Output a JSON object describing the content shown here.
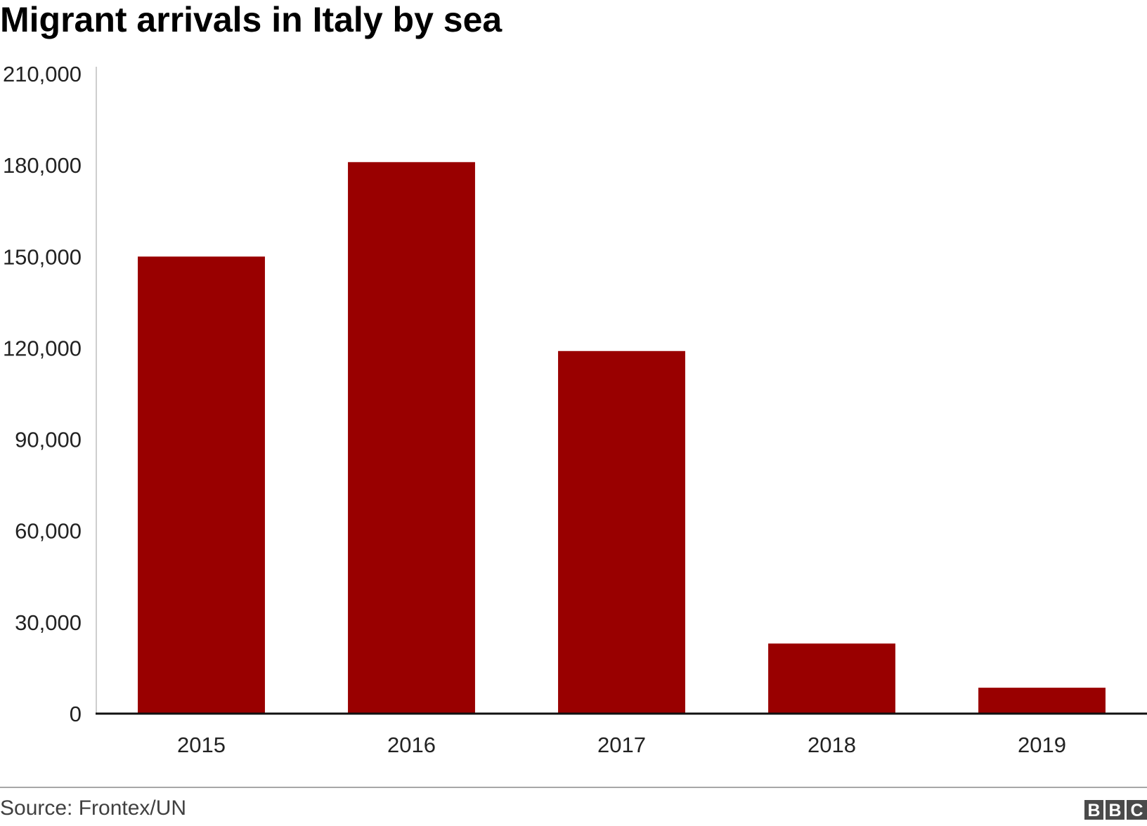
{
  "chart_data": {
    "type": "bar",
    "title": "Migrant arrivals in Italy by sea",
    "categories": [
      "2015",
      "2016",
      "2017",
      "2018",
      "2019"
    ],
    "values": [
      150000,
      181000,
      119000,
      23000,
      8500
    ],
    "ylim": [
      0,
      210000
    ],
    "yticks": [
      0,
      30000,
      60000,
      90000,
      120000,
      150000,
      180000,
      210000
    ],
    "ytick_labels": [
      "0",
      "30,000",
      "60,000",
      "90,000",
      "120,000",
      "150,000",
      "180,000",
      "210,000"
    ],
    "grid": false,
    "bar_color": "#990000"
  },
  "footer": {
    "source": "Source: Frontex/UN",
    "logo_letters": [
      "B",
      "B",
      "C"
    ]
  }
}
